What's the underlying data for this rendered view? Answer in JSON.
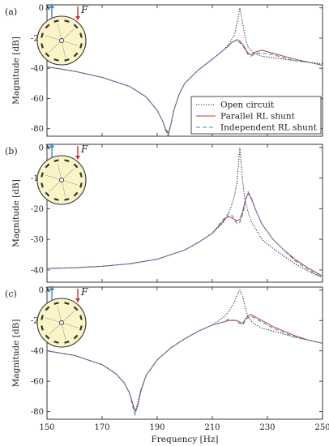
{
  "chart_data": [
    {
      "type": "line",
      "panel_label": "(a)",
      "ylabel": "Magnitude [dB]",
      "xlabel": "",
      "xlim": [
        150,
        250
      ],
      "ylim": [
        -85,
        2
      ],
      "yticks": [
        "0",
        "-20",
        "-40",
        "-60",
        "-80"
      ],
      "ytick_values": [
        0,
        -20,
        -40,
        -60,
        -80
      ],
      "xticks": [],
      "series": [
        {
          "name": "Open circuit",
          "color": "#222222",
          "style": "dotted",
          "x": [
            150,
            160,
            170,
            180,
            186,
            190,
            192,
            193,
            194,
            195,
            196,
            198,
            200,
            205,
            210,
            214,
            216,
            218,
            219,
            220,
            221,
            222,
            223,
            225,
            228,
            232,
            236,
            240,
            245,
            250
          ],
          "y": [
            -39,
            -42,
            -46,
            -52,
            -59,
            -68,
            -75,
            -80,
            -85,
            -77,
            -68,
            -57,
            -50,
            -41,
            -34,
            -28,
            -24,
            -18,
            -10,
            0,
            -10,
            -20,
            -26,
            -30,
            -32,
            -33,
            -34,
            -35,
            -36,
            -37
          ]
        },
        {
          "name": "Parallel RL shunt",
          "color": "#c0392b",
          "style": "solid",
          "x": [
            150,
            160,
            170,
            180,
            186,
            190,
            192,
            193,
            194,
            195,
            196,
            198,
            200,
            205,
            210,
            214,
            216,
            217,
            218,
            219,
            220,
            221,
            222,
            223,
            224,
            225,
            226,
            228,
            232,
            236,
            240,
            245,
            250
          ],
          "y": [
            -39,
            -42,
            -46,
            -52,
            -59,
            -68,
            -75,
            -80,
            -83,
            -77,
            -68,
            -57,
            -50,
            -41,
            -34,
            -28,
            -25,
            -23,
            -22,
            -21,
            -22,
            -24,
            -27,
            -30,
            -31,
            -30,
            -29,
            -28,
            -30,
            -32,
            -34,
            -36,
            -38
          ]
        },
        {
          "name": "Independent RL shunt",
          "color": "#3a8fd6",
          "style": "dashed",
          "x": [
            150,
            160,
            170,
            180,
            186,
            190,
            192,
            193,
            194,
            195,
            196,
            198,
            200,
            205,
            210,
            214,
            216,
            217,
            218,
            219,
            220,
            221,
            222,
            223,
            224,
            225,
            226,
            228,
            232,
            236,
            240,
            245,
            250
          ],
          "y": [
            -39,
            -42,
            -46,
            -52,
            -59,
            -68,
            -75,
            -81,
            -84,
            -77,
            -68,
            -57,
            -50,
            -41,
            -34,
            -28,
            -25,
            -23,
            -22,
            -22,
            -23,
            -25,
            -28,
            -31,
            -32,
            -31,
            -30,
            -30,
            -31,
            -33,
            -35,
            -36,
            -38
          ]
        }
      ],
      "legend": [
        "Open circuit",
        "Parallel RL shunt",
        "Independent RL shunt"
      ],
      "legend_position": "lower-right",
      "inset": {
        "x_label": "x",
        "force_label": "F"
      }
    },
    {
      "type": "line",
      "panel_label": "(b)",
      "ylabel": "Magnitude [dB]",
      "xlabel": "",
      "xlim": [
        150,
        250
      ],
      "ylim": [
        -44,
        1
      ],
      "yticks": [
        "0",
        "-10",
        "-20",
        "-30",
        "-40"
      ],
      "ytick_values": [
        0,
        -10,
        -20,
        -30,
        -40
      ],
      "xticks": [],
      "series": [
        {
          "name": "Open circuit",
          "color": "#222222",
          "style": "dotted",
          "x": [
            150,
            160,
            170,
            180,
            190,
            200,
            205,
            210,
            214,
            216,
            218,
            219,
            220,
            221,
            222,
            224,
            226,
            228,
            232,
            236,
            240,
            245,
            250
          ],
          "y": [
            -39.5,
            -39.3,
            -38.8,
            -38,
            -36.5,
            -33.5,
            -31,
            -28,
            -24.5,
            -21.5,
            -16,
            -11,
            0,
            -11,
            -18,
            -24,
            -27,
            -30,
            -33,
            -35.5,
            -38,
            -40.5,
            -42.5
          ]
        },
        {
          "name": "Parallel RL shunt",
          "color": "#c0392b",
          "style": "solid",
          "x": [
            150,
            160,
            170,
            180,
            190,
            200,
            205,
            210,
            214,
            215,
            216,
            217,
            218,
            219,
            220,
            221,
            222,
            223,
            224,
            226,
            228,
            232,
            236,
            240,
            245,
            250
          ],
          "y": [
            -39.5,
            -39.3,
            -38.8,
            -38,
            -36.5,
            -33.5,
            -31,
            -28,
            -24,
            -23,
            -22.5,
            -23,
            -23.5,
            -24,
            -23.5,
            -21,
            -17,
            -15,
            -16.5,
            -21,
            -25,
            -30,
            -33.5,
            -36.5,
            -39.5,
            -42
          ]
        },
        {
          "name": "Independent RL shunt",
          "color": "#3a8fd6",
          "style": "dashed",
          "x": [
            150,
            160,
            170,
            180,
            190,
            200,
            205,
            210,
            214,
            215,
            216,
            217,
            218,
            219,
            220,
            221,
            222,
            223,
            224,
            226,
            228,
            232,
            236,
            240,
            245,
            250
          ],
          "y": [
            -39.5,
            -39.3,
            -38.8,
            -38,
            -36.5,
            -33.5,
            -31,
            -28,
            -23.5,
            -22.5,
            -21.5,
            -22,
            -23.5,
            -25,
            -24.5,
            -22,
            -18,
            -14.5,
            -16,
            -21,
            -25,
            -30,
            -33.5,
            -37,
            -40,
            -42.5
          ]
        }
      ],
      "legend_position": "none",
      "inset": {
        "x_label": "x",
        "force_label": "F"
      }
    },
    {
      "type": "line",
      "panel_label": "(c)",
      "ylabel": "Magnitude [dB]",
      "xlabel": "Frequency [Hz]",
      "xlim": [
        150,
        250
      ],
      "ylim": [
        -85,
        2
      ],
      "yticks": [
        "0",
        "-20",
        "-40",
        "-60",
        "-80"
      ],
      "ytick_values": [
        0,
        -20,
        -40,
        -60,
        -80
      ],
      "xticks": [
        "150",
        "170",
        "190",
        "210",
        "230",
        "250"
      ],
      "xtick_values": [
        150,
        170,
        190,
        210,
        230,
        250
      ],
      "series": [
        {
          "name": "Open circuit",
          "color": "#222222",
          "style": "dotted",
          "x": [
            150,
            160,
            170,
            175,
            178,
            180,
            181,
            182,
            183,
            184,
            186,
            190,
            195,
            200,
            205,
            210,
            214,
            216,
            218,
            219,
            220,
            221,
            222,
            223,
            225,
            228,
            232,
            236,
            240,
            245,
            250
          ],
          "y": [
            -40,
            -43,
            -49,
            -55,
            -61,
            -68,
            -74,
            -80,
            -74,
            -66,
            -56,
            -46,
            -38,
            -32,
            -27,
            -23,
            -18,
            -14,
            -8,
            -3,
            0,
            -4,
            -12,
            -18,
            -22,
            -25,
            -27,
            -29,
            -31,
            -33,
            -35
          ]
        },
        {
          "name": "Parallel RL shunt",
          "color": "#c0392b",
          "style": "solid",
          "x": [
            150,
            160,
            170,
            175,
            178,
            180,
            181,
            182,
            183,
            184,
            186,
            190,
            195,
            200,
            205,
            210,
            214,
            216,
            218,
            219,
            220,
            221,
            222,
            223,
            224,
            226,
            228,
            232,
            236,
            240,
            245,
            250
          ],
          "y": [
            -40,
            -43,
            -49,
            -55,
            -61,
            -68,
            -74,
            -80,
            -76,
            -67,
            -56,
            -46,
            -38,
            -32,
            -27,
            -23,
            -21,
            -20,
            -20,
            -20,
            -21,
            -22,
            -19,
            -17,
            -16,
            -18,
            -20,
            -24,
            -27,
            -30,
            -33,
            -35
          ]
        },
        {
          "name": "Independent RL shunt",
          "color": "#3a8fd6",
          "style": "dashed",
          "x": [
            150,
            160,
            170,
            175,
            178,
            180,
            181,
            182,
            183,
            184,
            186,
            190,
            195,
            200,
            205,
            210,
            214,
            216,
            218,
            219,
            220,
            221,
            222,
            223,
            224,
            226,
            228,
            232,
            236,
            240,
            245,
            250
          ],
          "y": [
            -40,
            -43,
            -49,
            -55,
            -61,
            -68,
            -76,
            -82,
            -75,
            -66,
            -56,
            -46,
            -38,
            -32,
            -27,
            -23,
            -21,
            -19,
            -20,
            -21,
            -22,
            -23,
            -20,
            -18,
            -17,
            -19,
            -21,
            -25,
            -28,
            -31,
            -33,
            -35
          ]
        }
      ],
      "legend_position": "none",
      "inset": {
        "x_label": "x",
        "force_label": "F"
      }
    }
  ]
}
